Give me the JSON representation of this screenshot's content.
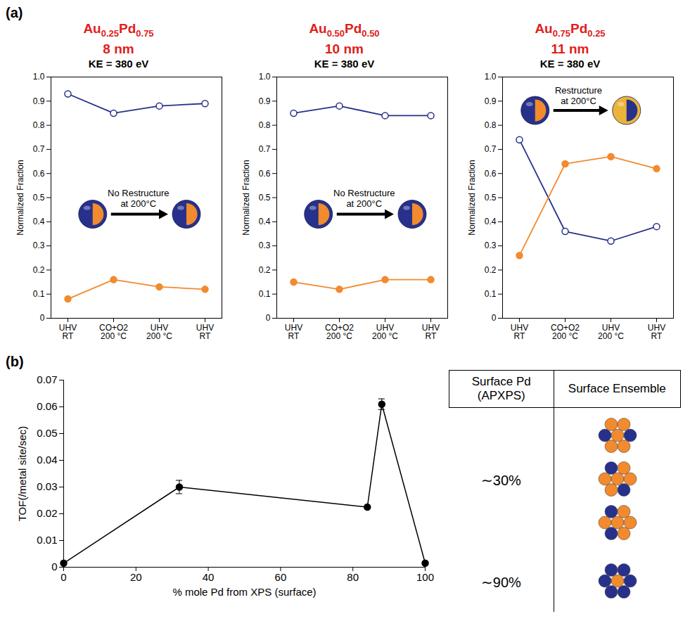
{
  "chart_data": [
    {
      "panel": "(a)",
      "type": "line",
      "title": "Au0.25Pd0.75",
      "subtitle": "8 nm",
      "annotations": [
        "KE = 380 eV",
        "No Restructure at 200°C"
      ],
      "categories": [
        "UHV\nRT",
        "CO+O2\n200 °C",
        "UHV\n200 °C",
        "UHV\nRT"
      ],
      "series": [
        {
          "color": "#27318b",
          "marker": "circle-open",
          "values": [
            0.93,
            0.85,
            0.88,
            0.89
          ]
        },
        {
          "color": "#f28a2e",
          "marker": "circle",
          "values": [
            0.08,
            0.16,
            0.13,
            0.12
          ]
        }
      ],
      "ylabel": "Normalized Fraction",
      "ylim": [
        0,
        1
      ],
      "yticks": [
        0,
        0.1,
        0.2,
        0.3,
        0.4,
        0.5,
        0.6,
        0.7,
        0.8,
        0.9,
        {
          "value": 1,
          "label": "1.0"
        }
      ],
      "grid": false
    },
    {
      "type": "line",
      "title": "Au0.50Pd0.50",
      "subtitle": "10 nm",
      "annotations": [
        "KE = 380 eV",
        "No Restructure at 200°C"
      ],
      "categories": [
        "UHV\nRT",
        "CO+O2\n200 °C",
        "UHV\n200 °C",
        "UHV\nRT"
      ],
      "series": [
        {
          "color": "#27318b",
          "marker": "circle-open",
          "values": [
            0.85,
            0.88,
            0.84,
            0.84
          ]
        },
        {
          "color": "#f28a2e",
          "marker": "circle",
          "values": [
            0.15,
            0.12,
            0.16,
            0.16
          ]
        }
      ],
      "ylabel": "Normalized Fraction",
      "ylim": [
        0,
        1
      ],
      "yticks": [
        0,
        0.1,
        0.2,
        0.3,
        0.4,
        0.5,
        0.6,
        0.7,
        0.8,
        0.9,
        {
          "value": 1,
          "label": "1.0"
        }
      ],
      "grid": false
    },
    {
      "type": "line",
      "title": "Au0.75Pd0.25",
      "subtitle": "11 nm",
      "annotations": [
        "KE = 380 eV",
        "Restructure at 200°C"
      ],
      "categories": [
        "UHV\nRT",
        "CO+O2\n200 °C",
        "UHV\n200 °C",
        "UHV\nRT"
      ],
      "series": [
        {
          "color": "#27318b",
          "marker": "circle-open",
          "values": [
            0.74,
            0.36,
            0.32,
            0.38
          ]
        },
        {
          "color": "#f28a2e",
          "marker": "circle",
          "values": [
            0.26,
            0.64,
            0.67,
            0.62
          ]
        }
      ],
      "ylabel": "Normalized Fraction",
      "ylim": [
        0,
        1
      ],
      "yticks": [
        0,
        0.1,
        0.2,
        0.3,
        0.4,
        0.5,
        0.6,
        0.7,
        0.8,
        0.9,
        {
          "value": 1,
          "label": "1.0"
        }
      ],
      "grid": false
    },
    {
      "panel": "(b)",
      "type": "line",
      "xlabel": "% mole Pd from XPS (surface)",
      "ylabel": "TOF(/metal site/sec)",
      "x": [
        0,
        32,
        84,
        88,
        100
      ],
      "values": [
        0.0015,
        0.03,
        0.0225,
        0.061,
        0.0015
      ],
      "errors": [
        null,
        0.0025,
        null,
        0.002,
        null
      ],
      "color": "#000000",
      "marker": "circle",
      "line_style": "solid",
      "xlim": [
        0,
        100
      ],
      "xticks": [
        0,
        20,
        40,
        60,
        80,
        100
      ],
      "ylim": [
        0,
        0.07
      ],
      "yticks": [
        0,
        0.01,
        0.02,
        0.03,
        0.04,
        0.05,
        0.06,
        0.07
      ],
      "grid": false
    }
  ],
  "table": {
    "header": [
      "Surface Pd (APXPS)",
      "Surface Ensemble"
    ],
    "rows": [
      [
        "∼30%"
      ],
      [
        "∼90%"
      ]
    ]
  }
}
